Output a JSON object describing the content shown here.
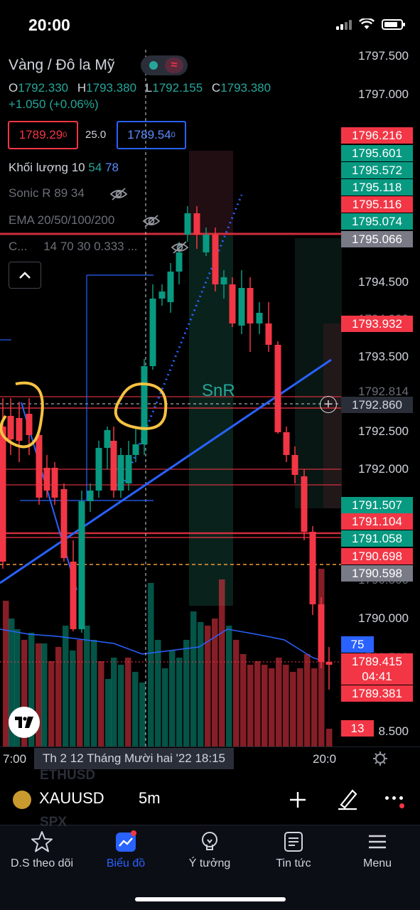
{
  "status": {
    "time": "20:00"
  },
  "symbol": {
    "title": "Vàng / Đô la Mỹ",
    "ohlc": [
      {
        "k": "O",
        "v": "1792.330"
      },
      {
        "k": "H",
        "v": "1793.380"
      },
      {
        "k": "L",
        "v": "1792.155"
      },
      {
        "k": "C",
        "v": "1793.380"
      }
    ],
    "change": "+1.050 (+0.06%)",
    "sell": "1789.29",
    "sell_sup": "0",
    "spread": "25.0",
    "buy": "1789.54",
    "buy_sup": "0"
  },
  "indicators": {
    "volume_label": "Khối lượng",
    "volume_v1": "10",
    "volume_v2": "54",
    "volume_v3": "78",
    "sonic": "Sonic R 89 34",
    "ema": "EMA 20/50/100/200",
    "custom": "C...",
    "custom_params": "14 70 30 0.333 ..."
  },
  "chart_annotation": "SnR",
  "price_scale": [
    "1797.500",
    "1797.000",
    "1794.500",
    "1793.500",
    "1792.500",
    "1792.000",
    "1790.000",
    "8.500"
  ],
  "price_scale_partial": [
    "1794.000",
    "1792.814",
    "1790.500",
    "1789.500"
  ],
  "price_labels": [
    {
      "text": "1796.216",
      "color": "red"
    },
    {
      "text": "1795.601",
      "color": "green"
    },
    {
      "text": "1795.572",
      "color": "green"
    },
    {
      "text": "1795.118",
      "color": "green"
    },
    {
      "text": "1795.116",
      "color": "red"
    },
    {
      "text": "1795.074",
      "color": "green"
    },
    {
      "text": "1795.066",
      "color": "gray"
    },
    {
      "text": "1793.932",
      "color": "red"
    },
    {
      "text": "1792.860",
      "color": "dark"
    },
    {
      "text": "1791.507",
      "color": "green"
    },
    {
      "text": "1791.104",
      "color": "red"
    },
    {
      "text": "1791.058",
      "color": "green"
    },
    {
      "text": "1790.698",
      "color": "red"
    },
    {
      "text": "1790.598",
      "color": "gray"
    },
    {
      "text": "1789.415",
      "color": "red"
    },
    {
      "text": "04:41",
      "color": "red"
    },
    {
      "text": "1789.381",
      "color": "red"
    },
    {
      "text": "75",
      "color": "blue"
    },
    {
      "text": "13",
      "color": "red"
    }
  ],
  "time_axis": {
    "left": "7:00",
    "cursor": "Th 2 12 Tháng Mười hai '22   18:15",
    "right": "20:0"
  },
  "ghost_symbols": [
    "ETHUSD",
    "SPX"
  ],
  "toolbar": {
    "symbol": "XAUUSD",
    "timeframe": "5m"
  },
  "tabs": [
    {
      "label": "D.S theo dõi",
      "icon": "star-icon"
    },
    {
      "label": "Biểu đồ",
      "icon": "chart-icon",
      "active": true
    },
    {
      "label": "Ý tưởng",
      "icon": "lightbulb-icon"
    },
    {
      "label": "Tin tức",
      "icon": "news-icon"
    },
    {
      "label": "Menu",
      "icon": "menu-icon"
    }
  ],
  "colors": {
    "up": "#089981",
    "down": "#f23645",
    "accent": "#2962ff",
    "annotation": "#f5c242"
  }
}
